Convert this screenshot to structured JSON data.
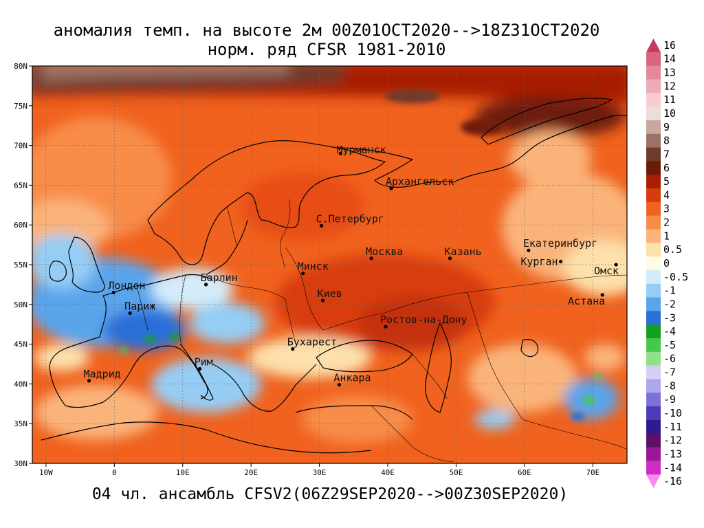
{
  "title_line1": "аномалия темп. на высоте 2м 00Z01OCT2020-->18Z31OCT2020",
  "title_line2": "норм. ряд CFSR 1981-2010",
  "bottom_title": "04 чл. ансамбль CFSV2(06Z29SEP2020-->00Z30SEP2020)",
  "lon_ticks": [
    {
      "value": -10,
      "label": "10W"
    },
    {
      "value": 0,
      "label": "0"
    },
    {
      "value": 10,
      "label": "10E"
    },
    {
      "value": 20,
      "label": "20E"
    },
    {
      "value": 30,
      "label": "30E"
    },
    {
      "value": 40,
      "label": "40E"
    },
    {
      "value": 50,
      "label": "50E"
    },
    {
      "value": 60,
      "label": "60E"
    },
    {
      "value": 70,
      "label": "70E"
    }
  ],
  "lat_ticks": [
    {
      "value": 30,
      "label": "30N"
    },
    {
      "value": 35,
      "label": "35N"
    },
    {
      "value": 40,
      "label": "40N"
    },
    {
      "value": 45,
      "label": "45N"
    },
    {
      "value": 50,
      "label": "50N"
    },
    {
      "value": 55,
      "label": "55N"
    },
    {
      "value": 60,
      "label": "60N"
    },
    {
      "value": 65,
      "label": "65N"
    },
    {
      "value": 70,
      "label": "70N"
    },
    {
      "value": 75,
      "label": "75N"
    },
    {
      "value": 80,
      "label": "80N"
    }
  ],
  "extent": {
    "lon_min": -12,
    "lon_max": 75,
    "lat_min": 30,
    "lat_max": 80
  },
  "cities": [
    {
      "name": "Мурманск",
      "lon": 33.1,
      "lat": 69.0
    },
    {
      "name": "Архангельск",
      "lon": 40.5,
      "lat": 64.6
    },
    {
      "name": "С.Петербург",
      "lon": 30.3,
      "lat": 59.9
    },
    {
      "name": "Москва",
      "lon": 37.6,
      "lat": 55.8
    },
    {
      "name": "Казань",
      "lon": 49.1,
      "lat": 55.8
    },
    {
      "name": "Екатеринбург",
      "lon": 60.6,
      "lat": 56.8
    },
    {
      "name": "Курган",
      "lon": 65.3,
      "lat": 55.4
    },
    {
      "name": "Омск",
      "lon": 73.4,
      "lat": 55.0
    },
    {
      "name": "Астана",
      "lon": 71.4,
      "lat": 51.2
    },
    {
      "name": "Минск",
      "lon": 27.6,
      "lat": 53.9
    },
    {
      "name": "Берлин",
      "lon": 13.4,
      "lat": 52.5
    },
    {
      "name": "Лондон",
      "lon": -0.1,
      "lat": 51.5
    },
    {
      "name": "Париж",
      "lon": 2.3,
      "lat": 48.9
    },
    {
      "name": "Киев",
      "lon": 30.5,
      "lat": 50.5
    },
    {
      "name": "Ростов-на-Дону",
      "lon": 39.7,
      "lat": 47.2
    },
    {
      "name": "Бухарест",
      "lon": 26.1,
      "lat": 44.4
    },
    {
      "name": "Рим",
      "lon": 12.5,
      "lat": 41.9
    },
    {
      "name": "Мадрид",
      "lon": -3.7,
      "lat": 40.4
    },
    {
      "name": "Анкара",
      "lon": 32.9,
      "lat": 39.9
    }
  ],
  "colorbar": [
    {
      "label": "16",
      "color": "#c43c5c"
    },
    {
      "label": "14",
      "color": "#d8647e"
    },
    {
      "label": "13",
      "color": "#e4889c"
    },
    {
      "label": "12",
      "color": "#eeaab8"
    },
    {
      "label": "11",
      "color": "#f6cdd3"
    },
    {
      "label": "10",
      "color": "#eedcd6"
    },
    {
      "label": "9",
      "color": "#c8a89c"
    },
    {
      "label": "8",
      "color": "#9c7264"
    },
    {
      "label": "7",
      "color": "#6e3a2c"
    },
    {
      "label": "6",
      "color": "#6e1a08"
    },
    {
      "label": "5",
      "color": "#a81e02"
    },
    {
      "label": "4",
      "color": "#d83c0c"
    },
    {
      "label": "3",
      "color": "#f0621e"
    },
    {
      "label": "2",
      "color": "#f88c4a"
    },
    {
      "label": "1",
      "color": "#fab47a"
    },
    {
      "label": "0.5",
      "color": "#fde0ac"
    },
    {
      "label": "0",
      "color": "#fffbe4"
    },
    {
      "label": "-0.5",
      "color": "#d4ecfa"
    },
    {
      "label": "-1",
      "color": "#96cdf4"
    },
    {
      "label": "-2",
      "color": "#5aa4ec"
    },
    {
      "label": "-3",
      "color": "#2a6ed8"
    },
    {
      "label": "-4",
      "color": "#14a01e"
    },
    {
      "label": "-5",
      "color": "#46c84e"
    },
    {
      "label": "-6",
      "color": "#90e088"
    },
    {
      "label": "-7",
      "color": "#d4d0f4"
    },
    {
      "label": "-8",
      "color": "#aca6ea"
    },
    {
      "label": "-9",
      "color": "#7c72da"
    },
    {
      "label": "-10",
      "color": "#4c3cb8"
    },
    {
      "label": "-11",
      "color": "#2c1c90"
    },
    {
      "label": "-12",
      "color": "#5c1068"
    },
    {
      "label": "-13",
      "color": "#9a1896"
    },
    {
      "label": "-14",
      "color": "#d02cc8"
    },
    {
      "label": "-16",
      "color": "#f48cf0"
    }
  ]
}
